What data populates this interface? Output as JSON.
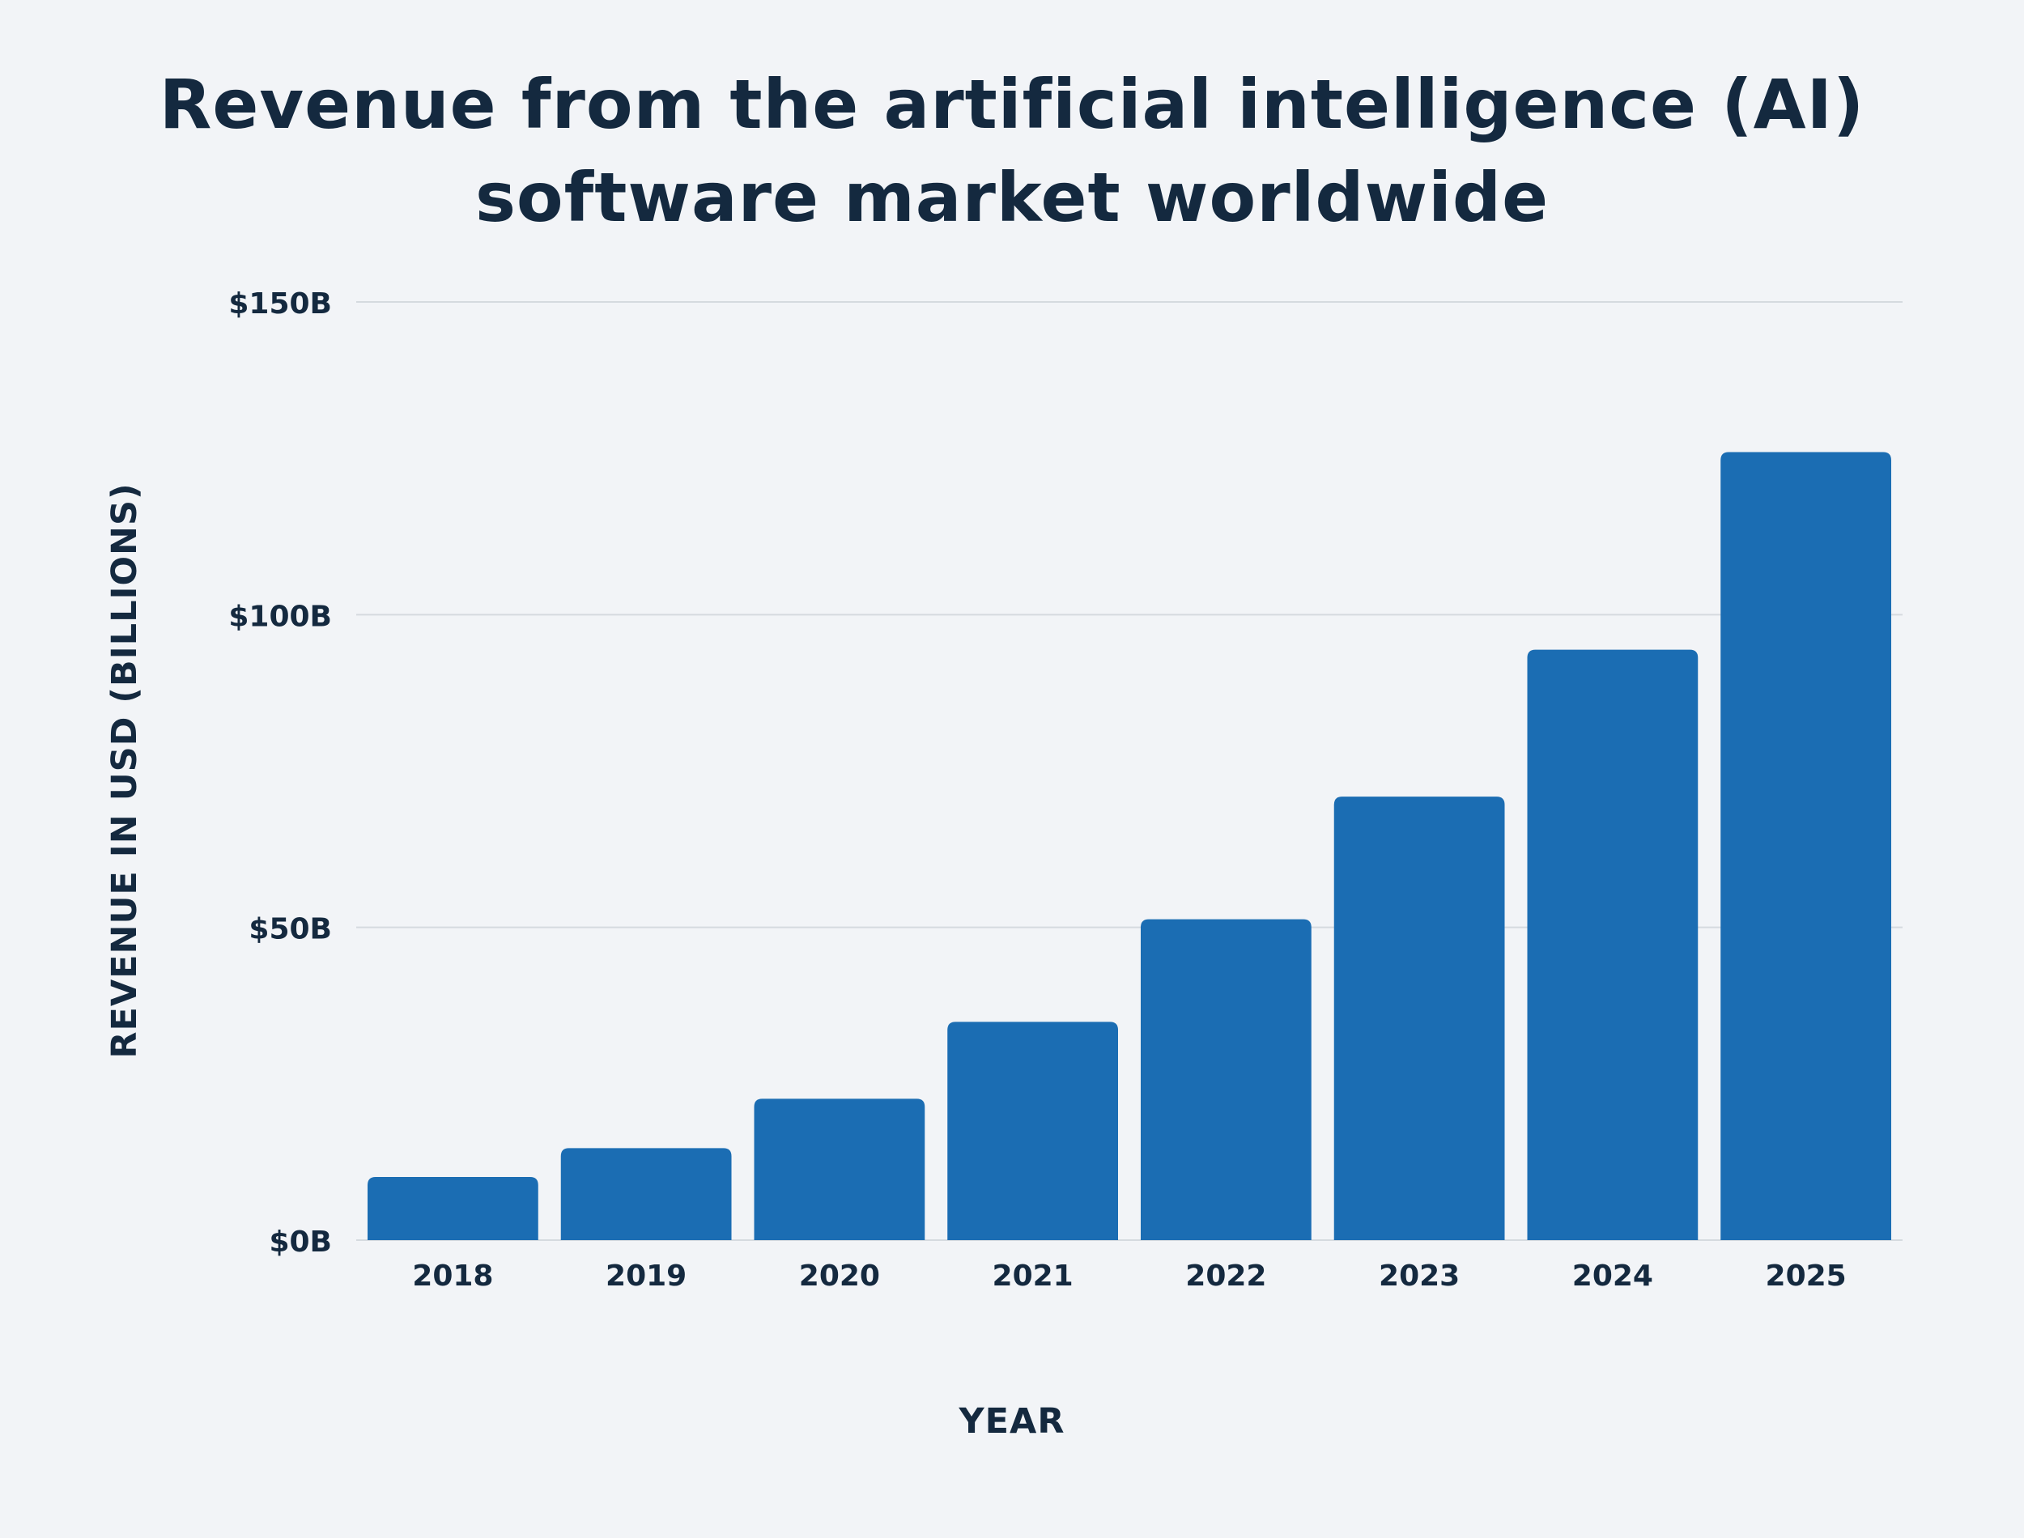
{
  "chart_data": {
    "type": "bar",
    "title_lines": [
      "Revenue from the artificial intelligence (AI)",
      "software market worldwide"
    ],
    "xlabel": "YEAR",
    "ylabel": "REVENUE IN USD (BILLIONS)",
    "categories": [
      "2018",
      "2019",
      "2020",
      "2021",
      "2022",
      "2023",
      "2024",
      "2025"
    ],
    "values": [
      10.1,
      14.7,
      22.6,
      34.9,
      51.3,
      70.9,
      94.4,
      126.0
    ],
    "ylim": [
      0,
      150
    ],
    "y_ticks": [
      {
        "value": 0,
        "label": "$0B"
      },
      {
        "value": 50,
        "label": "$50B"
      },
      {
        "value": 100,
        "label": "$100B"
      },
      {
        "value": 150,
        "label": "$150B"
      }
    ],
    "grid": true,
    "bar_color": "#1b6db3",
    "grid_color": "#d5dadf",
    "text_color": "#14293f",
    "background_color": "#f2f4f7"
  }
}
